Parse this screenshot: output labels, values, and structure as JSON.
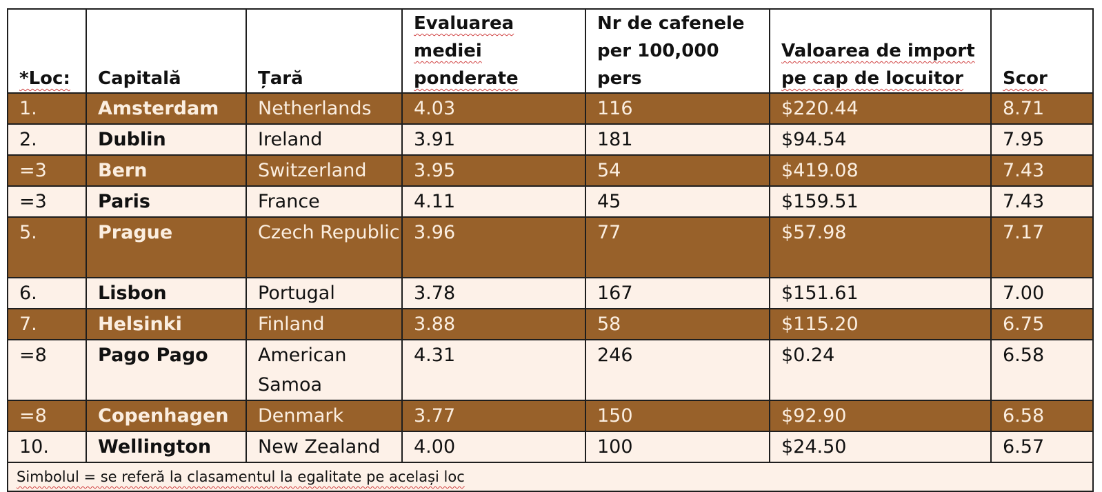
{
  "table": {
    "headers": [
      "*Loc:",
      "Capitală",
      "Țară",
      "Evaluarea mediei ponderate",
      "Nr de cafenele per 100,000 pers",
      "Valoarea de import pe cap de locuitor",
      "Scor"
    ],
    "rows": [
      {
        "rank": "1.",
        "capital": "Amsterdam",
        "country": "Netherlands",
        "rating": "4.03",
        "cafes": "116",
        "import": "$220.44",
        "score": "8.71"
      },
      {
        "rank": "2.",
        "capital": "Dublin",
        "country": "Ireland",
        "rating": "3.91",
        "cafes": "181",
        "import": "$94.54",
        "score": "7.95"
      },
      {
        "rank": "=3",
        "capital": "Bern",
        "country": "Switzerland",
        "rating": "3.95",
        "cafes": "54",
        "import": "$419.08",
        "score": "7.43"
      },
      {
        "rank": "=3",
        "capital": "Paris",
        "country": "France",
        "rating": "4.11",
        "cafes": "45",
        "import": "$159.51",
        "score": "7.43"
      },
      {
        "rank": "5.",
        "capital": "Prague",
        "country": "Czech Republic",
        "rating": "3.96",
        "cafes": "77",
        "import": "$57.98",
        "score": "7.17"
      },
      {
        "rank": "6.",
        "capital": "Lisbon",
        "country": "Portugal",
        "rating": "3.78",
        "cafes": "167",
        "import": "$151.61",
        "score": "7.00"
      },
      {
        "rank": "7.",
        "capital": "Helsinki",
        "country": "Finland",
        "rating": "3.88",
        "cafes": "58",
        "import": "$115.20",
        "score": "6.75"
      },
      {
        "rank": "=8",
        "capital": "Pago Pago",
        "country": "American Samoa",
        "rating": "4.31",
        "cafes": "246",
        "import": "$0.24",
        "score": "6.58"
      },
      {
        "rank": "=8",
        "capital": "Copenhagen",
        "country": "Denmark",
        "rating": "3.77",
        "cafes": "150",
        "import": "$92.90",
        "score": "6.58"
      },
      {
        "rank": "10.",
        "capital": "Wellington",
        "country": "New Zealand",
        "rating": "4.00",
        "cafes": "100",
        "import": "$24.50",
        "score": "6.57"
      }
    ],
    "footnote": "Simbolul = se referă la clasamentul la egalitate pe același loc"
  },
  "colors": {
    "dark_row": "#98612a",
    "light_row": "#fdf1e8",
    "dark_row_text": "#fbeee0"
  }
}
